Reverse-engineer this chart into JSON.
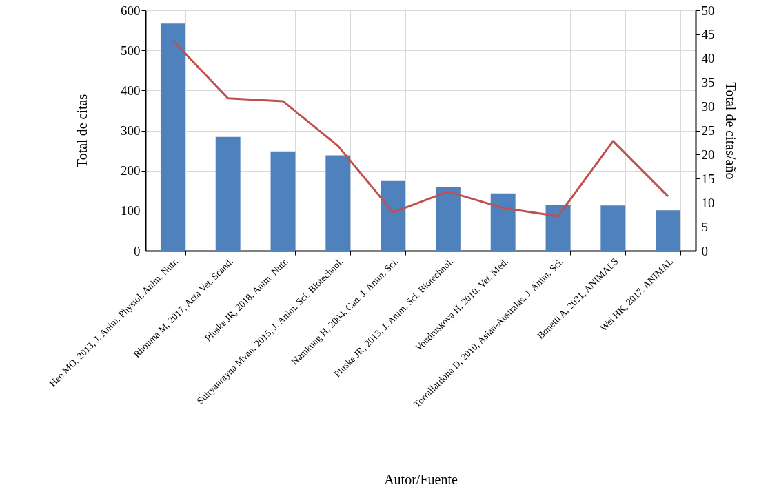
{
  "chart_data": {
    "type": "bar",
    "xlabel": "Autor/Fuente",
    "ylabel": "Total de citas",
    "y2label": "Total de citas/año",
    "categories": [
      "Heo MO, 2013, J. Anim. Physiol. Anim. Nutr.",
      "Rhouma M, 2017, Acta Vet. Scand.",
      "Pluske JR, 2018, Anim. Nutr.",
      "Suiryanrayna Mvan, 2015, J. Anim. Sci. Biotechnol.",
      "Namkung H, 2004, Can. J. Anim. Sci.",
      "Pluske JR, 2013, J. Anim. Sci. Biotechnol.",
      "Vondruskova H, 2010, Vet. Med.",
      "Torrallardona D, 2010, Asian-Australas. J. Anim. Sci.",
      "Bonetti A, 2021, ANIMALS",
      "Wei HK, 2017, ANIMAL"
    ],
    "series": [
      {
        "color": "#4f81bd",
        "values": [
          567,
          284,
          248,
          238,
          174,
          158,
          143,
          114,
          113,
          101
        ]
      },
      {
        "type": "line",
        "axis": "y2",
        "color": "#c0504d",
        "values": [
          43.7,
          31.7,
          31.1,
          21.8,
          8.0,
          12.3,
          8.9,
          7.2,
          22.8,
          11.3
        ]
      }
    ],
    "ylim": [
      0,
      600
    ],
    "yticks": [
      0,
      100,
      200,
      300,
      400,
      500,
      600
    ],
    "y2lim": [
      0,
      50
    ],
    "y2ticks": [
      0,
      5,
      10,
      15,
      20,
      25,
      30,
      35,
      40,
      45,
      50
    ],
    "grid": true,
    "marker": "none",
    "line_style": "solid"
  }
}
